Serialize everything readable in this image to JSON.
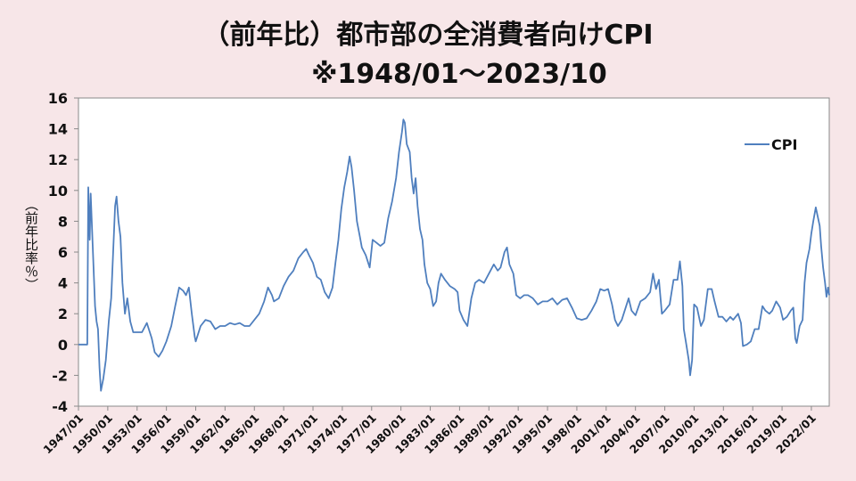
{
  "chart_data": {
    "type": "line",
    "title": "（前年比）都市部の全消費者向けCPI",
    "subtitle": "※1948/01～2023/10",
    "xlabel": "",
    "ylabel": "（前年比率％）",
    "ylim": [
      -4,
      16
    ],
    "yticks": [
      -4,
      -2,
      0,
      2,
      4,
      6,
      8,
      10,
      12,
      14,
      16
    ],
    "xlim": [
      1947.0,
      2023.83
    ],
    "xticks": [
      "1947/01",
      "1950/01",
      "1953/01",
      "1956/01",
      "1959/01",
      "1962/01",
      "1965/01",
      "1968/01",
      "1971/01",
      "1974/01",
      "1977/01",
      "1980/01",
      "1983/01",
      "1986/01",
      "1989/01",
      "1992/01",
      "1995/01",
      "1998/01",
      "2001/01",
      "2004/01",
      "2007/01",
      "2010/01",
      "2013/01",
      "2016/01",
      "2019/01",
      "2022/01"
    ],
    "grid": false,
    "legend": "top-right",
    "series": [
      {
        "name": "CPI",
        "color": "#4f7fbe",
        "points": [
          [
            1947.0,
            0.0
          ],
          [
            1947.9,
            0.0
          ],
          [
            1948.0,
            10.2
          ],
          [
            1948.15,
            6.8
          ],
          [
            1948.25,
            9.8
          ],
          [
            1948.45,
            6.5
          ],
          [
            1948.7,
            2.5
          ],
          [
            1948.85,
            1.5
          ],
          [
            1949.0,
            1.0
          ],
          [
            1949.15,
            -1.5
          ],
          [
            1949.3,
            -3.0
          ],
          [
            1949.55,
            -2.2
          ],
          [
            1949.8,
            -1.0
          ],
          [
            1950.1,
            1.5
          ],
          [
            1950.35,
            3.0
          ],
          [
            1950.55,
            6.0
          ],
          [
            1950.75,
            9.0
          ],
          [
            1950.9,
            9.6
          ],
          [
            1951.1,
            8.0
          ],
          [
            1951.3,
            7.0
          ],
          [
            1951.5,
            4.0
          ],
          [
            1951.75,
            2.0
          ],
          [
            1952.0,
            3.0
          ],
          [
            1952.3,
            1.5
          ],
          [
            1952.6,
            0.8
          ],
          [
            1953.0,
            0.8
          ],
          [
            1953.5,
            0.8
          ],
          [
            1954.0,
            1.4
          ],
          [
            1954.5,
            0.4
          ],
          [
            1954.8,
            -0.5
          ],
          [
            1955.2,
            -0.8
          ],
          [
            1955.6,
            -0.4
          ],
          [
            1956.0,
            0.2
          ],
          [
            1956.5,
            1.2
          ],
          [
            1956.9,
            2.5
          ],
          [
            1957.3,
            3.7
          ],
          [
            1957.7,
            3.5
          ],
          [
            1958.0,
            3.2
          ],
          [
            1958.3,
            3.7
          ],
          [
            1958.6,
            2.0
          ],
          [
            1958.9,
            0.5
          ],
          [
            1959.0,
            0.2
          ],
          [
            1959.5,
            1.2
          ],
          [
            1960.0,
            1.6
          ],
          [
            1960.5,
            1.5
          ],
          [
            1961.0,
            1.0
          ],
          [
            1961.5,
            1.2
          ],
          [
            1962.0,
            1.2
          ],
          [
            1962.5,
            1.4
          ],
          [
            1963.0,
            1.3
          ],
          [
            1963.5,
            1.4
          ],
          [
            1964.0,
            1.2
          ],
          [
            1964.5,
            1.2
          ],
          [
            1965.0,
            1.6
          ],
          [
            1965.5,
            2.0
          ],
          [
            1966.0,
            2.8
          ],
          [
            1966.4,
            3.7
          ],
          [
            1966.8,
            3.2
          ],
          [
            1967.0,
            2.8
          ],
          [
            1967.5,
            3.0
          ],
          [
            1968.0,
            3.8
          ],
          [
            1968.5,
            4.4
          ],
          [
            1969.0,
            4.8
          ],
          [
            1969.5,
            5.6
          ],
          [
            1970.0,
            6.0
          ],
          [
            1970.3,
            6.2
          ],
          [
            1970.6,
            5.8
          ],
          [
            1971.0,
            5.3
          ],
          [
            1971.4,
            4.4
          ],
          [
            1971.8,
            4.2
          ],
          [
            1972.2,
            3.4
          ],
          [
            1972.6,
            3.0
          ],
          [
            1973.0,
            3.7
          ],
          [
            1973.3,
            5.3
          ],
          [
            1973.6,
            6.8
          ],
          [
            1973.9,
            8.8
          ],
          [
            1974.2,
            10.2
          ],
          [
            1974.5,
            11.2
          ],
          [
            1974.75,
            12.2
          ],
          [
            1974.95,
            11.5
          ],
          [
            1975.2,
            10.0
          ],
          [
            1975.5,
            8.0
          ],
          [
            1975.8,
            7.0
          ],
          [
            1976.0,
            6.3
          ],
          [
            1976.4,
            5.8
          ],
          [
            1976.8,
            5.0
          ],
          [
            1977.1,
            6.8
          ],
          [
            1977.5,
            6.6
          ],
          [
            1977.9,
            6.4
          ],
          [
            1978.3,
            6.6
          ],
          [
            1978.7,
            8.2
          ],
          [
            1979.1,
            9.3
          ],
          [
            1979.5,
            10.8
          ],
          [
            1979.8,
            12.5
          ],
          [
            1980.1,
            13.8
          ],
          [
            1980.25,
            14.6
          ],
          [
            1980.4,
            14.4
          ],
          [
            1980.6,
            13.0
          ],
          [
            1980.9,
            12.5
          ],
          [
            1981.1,
            10.8
          ],
          [
            1981.3,
            9.8
          ],
          [
            1981.5,
            10.8
          ],
          [
            1981.7,
            9.0
          ],
          [
            1981.95,
            7.5
          ],
          [
            1982.2,
            6.8
          ],
          [
            1982.4,
            5.2
          ],
          [
            1982.7,
            4.0
          ],
          [
            1983.0,
            3.6
          ],
          [
            1983.3,
            2.5
          ],
          [
            1983.6,
            2.8
          ],
          [
            1983.85,
            4.0
          ],
          [
            1984.1,
            4.6
          ],
          [
            1984.5,
            4.2
          ],
          [
            1985.0,
            3.8
          ],
          [
            1985.5,
            3.6
          ],
          [
            1985.8,
            3.4
          ],
          [
            1986.0,
            2.2
          ],
          [
            1986.4,
            1.6
          ],
          [
            1986.8,
            1.2
          ],
          [
            1987.2,
            3.0
          ],
          [
            1987.6,
            4.0
          ],
          [
            1988.0,
            4.2
          ],
          [
            1988.5,
            4.0
          ],
          [
            1989.0,
            4.6
          ],
          [
            1989.5,
            5.2
          ],
          [
            1989.9,
            4.8
          ],
          [
            1990.2,
            5.0
          ],
          [
            1990.6,
            6.0
          ],
          [
            1990.85,
            6.3
          ],
          [
            1991.1,
            5.2
          ],
          [
            1991.5,
            4.6
          ],
          [
            1991.8,
            3.2
          ],
          [
            1992.2,
            3.0
          ],
          [
            1992.6,
            3.2
          ],
          [
            1993.0,
            3.2
          ],
          [
            1993.5,
            3.0
          ],
          [
            1994.0,
            2.6
          ],
          [
            1994.5,
            2.8
          ],
          [
            1995.0,
            2.8
          ],
          [
            1995.5,
            3.0
          ],
          [
            1996.0,
            2.6
          ],
          [
            1996.5,
            2.9
          ],
          [
            1997.0,
            3.0
          ],
          [
            1997.5,
            2.4
          ],
          [
            1998.0,
            1.7
          ],
          [
            1998.5,
            1.6
          ],
          [
            1999.0,
            1.7
          ],
          [
            1999.5,
            2.2
          ],
          [
            2000.0,
            2.8
          ],
          [
            2000.4,
            3.6
          ],
          [
            2000.8,
            3.5
          ],
          [
            2001.2,
            3.6
          ],
          [
            2001.6,
            2.6
          ],
          [
            2001.9,
            1.6
          ],
          [
            2002.2,
            1.2
          ],
          [
            2002.6,
            1.6
          ],
          [
            2003.0,
            2.4
          ],
          [
            2003.3,
            3.0
          ],
          [
            2003.6,
            2.2
          ],
          [
            2004.0,
            1.9
          ],
          [
            2004.5,
            2.8
          ],
          [
            2005.0,
            3.0
          ],
          [
            2005.5,
            3.4
          ],
          [
            2005.8,
            4.6
          ],
          [
            2006.1,
            3.6
          ],
          [
            2006.4,
            4.2
          ],
          [
            2006.7,
            2.0
          ],
          [
            2007.0,
            2.2
          ],
          [
            2007.5,
            2.6
          ],
          [
            2007.9,
            4.2
          ],
          [
            2008.3,
            4.2
          ],
          [
            2008.55,
            5.4
          ],
          [
            2008.8,
            3.8
          ],
          [
            2008.95,
            1.0
          ],
          [
            2009.2,
            0.0
          ],
          [
            2009.45,
            -1.0
          ],
          [
            2009.6,
            -2.0
          ],
          [
            2009.8,
            -1.0
          ],
          [
            2010.0,
            2.6
          ],
          [
            2010.3,
            2.4
          ],
          [
            2010.7,
            1.2
          ],
          [
            2011.0,
            1.6
          ],
          [
            2011.4,
            3.6
          ],
          [
            2011.8,
            3.6
          ],
          [
            2012.1,
            2.8
          ],
          [
            2012.5,
            1.8
          ],
          [
            2012.9,
            1.8
          ],
          [
            2013.3,
            1.5
          ],
          [
            2013.7,
            1.8
          ],
          [
            2014.0,
            1.6
          ],
          [
            2014.5,
            2.0
          ],
          [
            2014.8,
            1.4
          ],
          [
            2015.0,
            -0.1
          ],
          [
            2015.4,
            0.0
          ],
          [
            2015.8,
            0.2
          ],
          [
            2016.2,
            1.0
          ],
          [
            2016.6,
            1.0
          ],
          [
            2017.0,
            2.5
          ],
          [
            2017.3,
            2.2
          ],
          [
            2017.7,
            2.0
          ],
          [
            2018.0,
            2.2
          ],
          [
            2018.4,
            2.8
          ],
          [
            2018.8,
            2.4
          ],
          [
            2019.1,
            1.6
          ],
          [
            2019.5,
            1.8
          ],
          [
            2019.9,
            2.2
          ],
          [
            2020.15,
            2.4
          ],
          [
            2020.35,
            0.4
          ],
          [
            2020.5,
            0.1
          ],
          [
            2020.8,
            1.2
          ],
          [
            2021.1,
            1.6
          ],
          [
            2021.3,
            4.0
          ],
          [
            2021.5,
            5.3
          ],
          [
            2021.8,
            6.2
          ],
          [
            2022.0,
            7.2
          ],
          [
            2022.2,
            8.0
          ],
          [
            2022.45,
            8.9
          ],
          [
            2022.65,
            8.3
          ],
          [
            2022.85,
            7.7
          ],
          [
            2023.0,
            6.4
          ],
          [
            2023.2,
            5.0
          ],
          [
            2023.4,
            4.0
          ],
          [
            2023.55,
            3.1
          ],
          [
            2023.7,
            3.7
          ],
          [
            2023.83,
            3.2
          ]
        ]
      }
    ]
  }
}
